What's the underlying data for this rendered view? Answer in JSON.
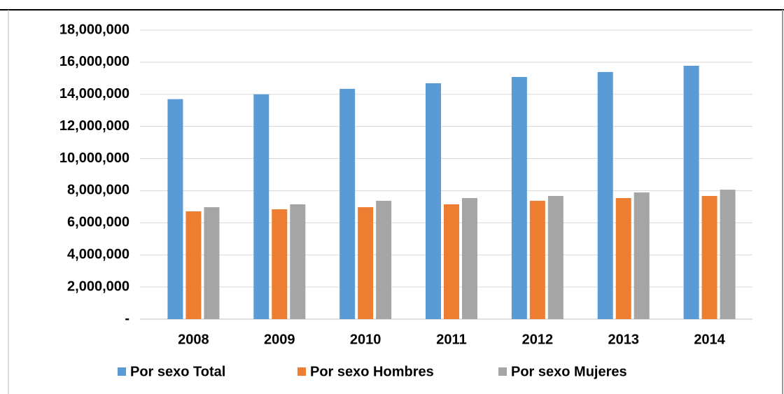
{
  "chart_data": {
    "type": "bar",
    "categories": [
      "2008",
      "2009",
      "2010",
      "2011",
      "2012",
      "2013",
      "2014"
    ],
    "series": [
      {
        "name": "Por sexo Total",
        "color": "#5b9bd5",
        "values": [
          13700000,
          14000000,
          14340000,
          14690000,
          15080000,
          15390000,
          15780000
        ]
      },
      {
        "name": "Por sexo Hombres",
        "color": "#ed7d31",
        "values": [
          6710000,
          6840000,
          6970000,
          7150000,
          7370000,
          7540000,
          7670000
        ]
      },
      {
        "name": "Por sexo Mujeres",
        "color": "#a5a5a5",
        "values": [
          6970000,
          7150000,
          7370000,
          7540000,
          7670000,
          7890000,
          8060000
        ]
      }
    ],
    "ylim": [
      0,
      18000000
    ],
    "yticks": [
      {
        "value": 0,
        "label": "-"
      },
      {
        "value": 2000000,
        "label": "2,000,000"
      },
      {
        "value": 4000000,
        "label": "4,000,000"
      },
      {
        "value": 6000000,
        "label": "6,000,000"
      },
      {
        "value": 8000000,
        "label": "8,000,000"
      },
      {
        "value": 10000000,
        "label": "10,000,000"
      },
      {
        "value": 12000000,
        "label": "12,000,000"
      },
      {
        "value": 14000000,
        "label": "14,000,000"
      },
      {
        "value": 16000000,
        "label": "16,000,000"
      },
      {
        "value": 18000000,
        "label": "18,000,000"
      }
    ],
    "grid": true,
    "legend": "bottom"
  }
}
